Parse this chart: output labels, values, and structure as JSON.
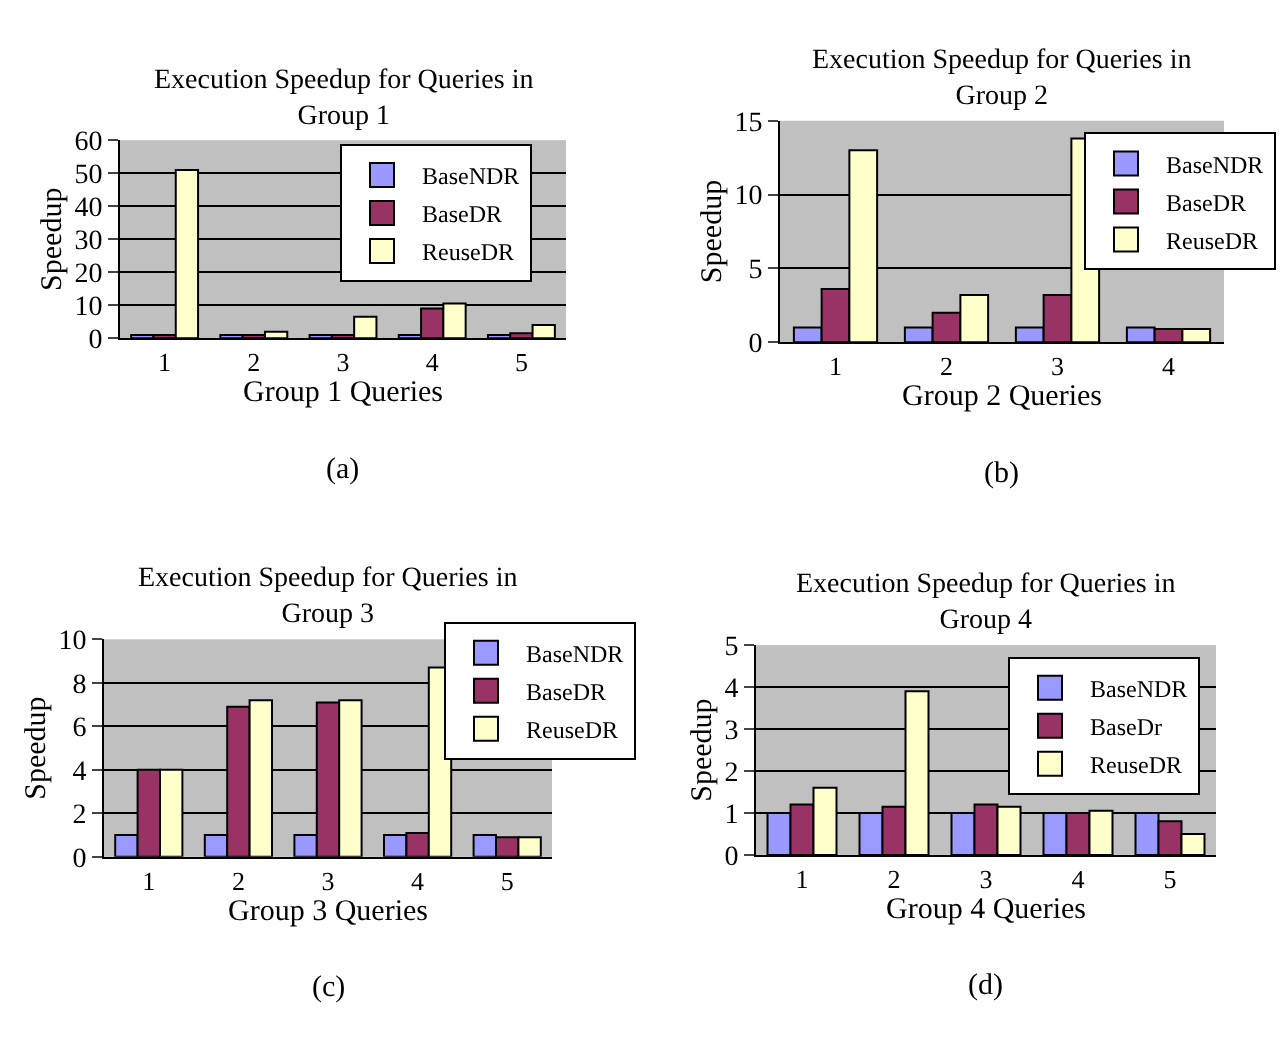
{
  "chart_data": [
    {
      "type": "bar",
      "title": "Execution Speedup for Queries in\nGroup 1",
      "xlabel": "Group 1 Queries",
      "ylabel": "Speedup",
      "categories": [
        "1",
        "2",
        "3",
        "4",
        "5"
      ],
      "series": [
        {
          "name": "BaseNDR",
          "color": "#9999ff",
          "values": [
            1,
            1,
            1,
            1,
            1
          ]
        },
        {
          "name": "BaseDR",
          "color": "#993366",
          "values": [
            1,
            1,
            1,
            9,
            1.5
          ]
        },
        {
          "name": "ReuseDR",
          "color": "#ffffcc",
          "values": [
            51,
            2,
            6.5,
            10.5,
            4
          ]
        }
      ],
      "ylim": [
        0,
        60
      ],
      "yticks": [
        0,
        10,
        20,
        30,
        40,
        50,
        60
      ],
      "grid": "y",
      "legend": "top right",
      "annotations": [
        "(a)"
      ]
    },
    {
      "type": "bar",
      "title": "Execution Speedup for Queries in\nGroup 2",
      "xlabel": "Group 2 Queries",
      "ylabel": "Speedup",
      "categories": [
        "1",
        "2",
        "3",
        "4"
      ],
      "series": [
        {
          "name": "BaseNDR",
          "color": "#9999ff",
          "values": [
            1,
            1,
            1,
            1
          ]
        },
        {
          "name": "BaseDR",
          "color": "#993366",
          "values": [
            3.6,
            2,
            3.2,
            0.9
          ]
        },
        {
          "name": "ReuseDR",
          "color": "#ffffcc",
          "values": [
            13,
            3.2,
            13.8,
            0.9
          ]
        }
      ],
      "ylim": [
        0,
        15
      ],
      "yticks": [
        0,
        5,
        10,
        15
      ],
      "grid": "y",
      "legend": "top right",
      "annotations": [
        "(b)"
      ]
    },
    {
      "type": "bar",
      "title": "Execution Speedup for Queries in\nGroup 3",
      "xlabel": "Group 3 Queries",
      "ylabel": "Speedup",
      "categories": [
        "1",
        "2",
        "3",
        "4",
        "5"
      ],
      "series": [
        {
          "name": "BaseNDR",
          "color": "#9999ff",
          "values": [
            1,
            1,
            1,
            1,
            1
          ]
        },
        {
          "name": "BaseDR",
          "color": "#993366",
          "values": [
            4,
            6.9,
            7.1,
            1.1,
            0.9
          ]
        },
        {
          "name": "ReuseDR",
          "color": "#ffffcc",
          "values": [
            4,
            7.2,
            7.2,
            8.7,
            0.9
          ]
        }
      ],
      "ylim": [
        0,
        10
      ],
      "yticks": [
        0,
        2,
        4,
        6,
        8,
        10
      ],
      "grid": "y",
      "legend": "top right",
      "annotations": [
        "(c)"
      ]
    },
    {
      "type": "bar",
      "title": "Execution Speedup for Queries in\nGroup 4",
      "xlabel": "Group 4 Queries",
      "ylabel": "Speedup",
      "categories": [
        "1",
        "2",
        "3",
        "4",
        "5"
      ],
      "series": [
        {
          "name": "BaseNDR",
          "color": "#9999ff",
          "values": [
            1,
            1,
            1,
            1,
            1
          ]
        },
        {
          "name": "BaseDr",
          "color": "#993366",
          "values": [
            1.2,
            1.15,
            1.2,
            1,
            0.8
          ]
        },
        {
          "name": "ReuseDR",
          "color": "#ffffcc",
          "values": [
            1.6,
            3.9,
            1.15,
            1.05,
            0.5
          ]
        }
      ],
      "ylim": [
        0,
        5
      ],
      "yticks": [
        0,
        1,
        2,
        3,
        4,
        5
      ],
      "grid": "y",
      "legend": "top right",
      "annotations": [
        "(d)"
      ]
    }
  ]
}
